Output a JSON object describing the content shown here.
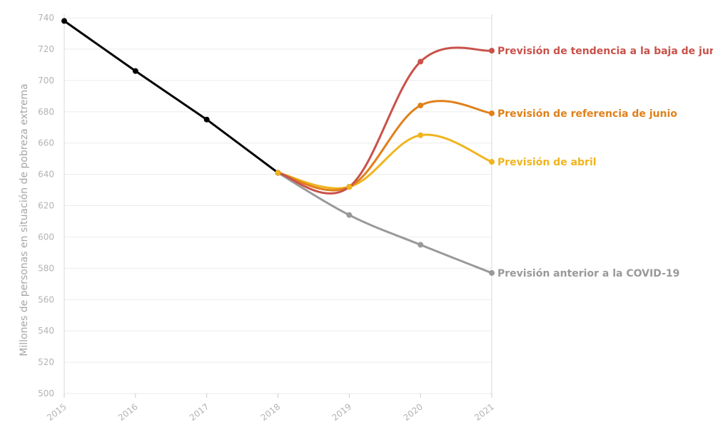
{
  "chart_data": {
    "type": "line",
    "title": "",
    "xlabel": "",
    "ylabel": "Millones de personas en situación de pobreza extrema",
    "xlim": [
      2015,
      2021
    ],
    "ylim": [
      500,
      740
    ],
    "x_ticks": [
      "2015",
      "2016",
      "2017",
      "2018",
      "2019",
      "2020",
      "2021"
    ],
    "y_ticks": [
      "500",
      "520",
      "540",
      "560",
      "580",
      "600",
      "620",
      "640",
      "660",
      "680",
      "700",
      "720",
      "740"
    ],
    "grid": true,
    "series": [
      {
        "name": "",
        "color": "#000000",
        "x": [
          2015,
          2016,
          2017,
          2018
        ],
        "y": [
          738,
          706,
          675,
          641
        ]
      },
      {
        "name": "Previsión anterior a la COVID-19",
        "color": "#999999",
        "x": [
          2018,
          2019,
          2020,
          2021
        ],
        "y": [
          641,
          614,
          595,
          577
        ]
      },
      {
        "name": "Previsión de tendencia a la baja de junio",
        "color": "#c9524a",
        "x": [
          2018,
          2019,
          2020,
          2021
        ],
        "y": [
          641,
          632,
          712,
          719
        ]
      },
      {
        "name": "Previsión de referencia de junio",
        "color": "#e0801a",
        "x": [
          2018,
          2019,
          2020,
          2021
        ],
        "y": [
          641,
          632,
          684,
          679
        ]
      },
      {
        "name": "Previsión de abril",
        "color": "#f0b41e",
        "x": [
          2018,
          2019,
          2020,
          2021
        ],
        "y": [
          641,
          632,
          665,
          648
        ]
      }
    ]
  }
}
